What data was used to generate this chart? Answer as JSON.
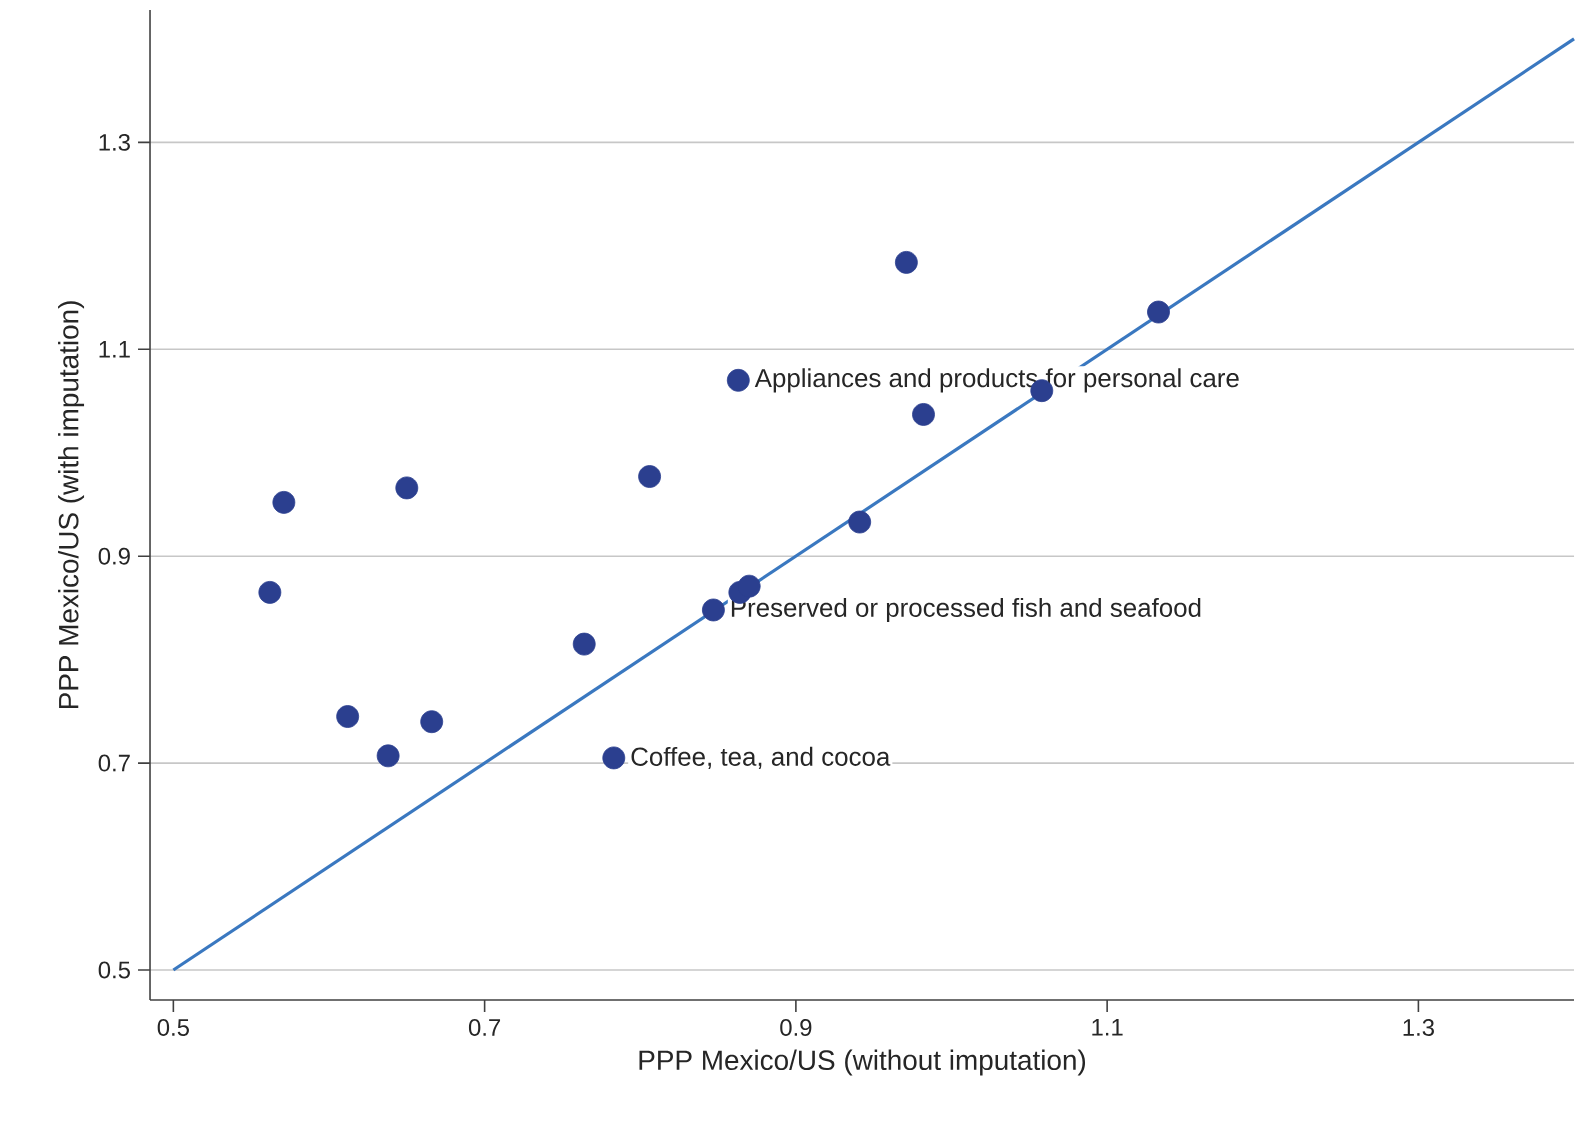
{
  "chart_data": {
    "type": "scatter",
    "xlabel": "PPP Mexico/US (without imputation)",
    "ylabel": "PPP Mexico/US (with imputation)",
    "xlim": [
      0.485,
      1.4
    ],
    "ylim": [
      0.471,
      1.428
    ],
    "xticks": [
      0.5,
      0.7,
      0.9,
      1.1,
      1.3
    ],
    "yticks": [
      0.5,
      0.7,
      0.9,
      1.1,
      1.3
    ],
    "grid": "y",
    "series": [
      {
        "marker": "circle",
        "color": "#2b3f8f",
        "x": [
          0.562,
          0.571,
          0.612,
          0.638,
          0.65,
          0.666,
          0.764,
          0.783,
          0.806,
          0.847,
          0.863,
          0.864,
          0.87,
          0.941,
          0.971,
          0.982,
          1.058,
          1.133
        ],
        "values": [
          0.865,
          0.952,
          0.745,
          0.707,
          0.966,
          0.74,
          0.815,
          0.705,
          0.977,
          0.848,
          1.07,
          0.865,
          0.871,
          0.933,
          1.184,
          1.037,
          1.06,
          1.136
        ]
      },
      {
        "type": "line",
        "marker": "none",
        "color": "#3a78c0",
        "x": [
          0.5,
          1.4
        ],
        "values": [
          0.5,
          1.4
        ]
      }
    ],
    "annotations": [
      {
        "text": "Appliances and products for personal care",
        "x": 0.863,
        "y": 1.07
      },
      {
        "text": "Preserved or processed fish and seafood",
        "x": 0.847,
        "y": 0.848
      },
      {
        "text": "Coffee, tea, and cocoa",
        "x": 0.783,
        "y": 0.705
      }
    ]
  }
}
